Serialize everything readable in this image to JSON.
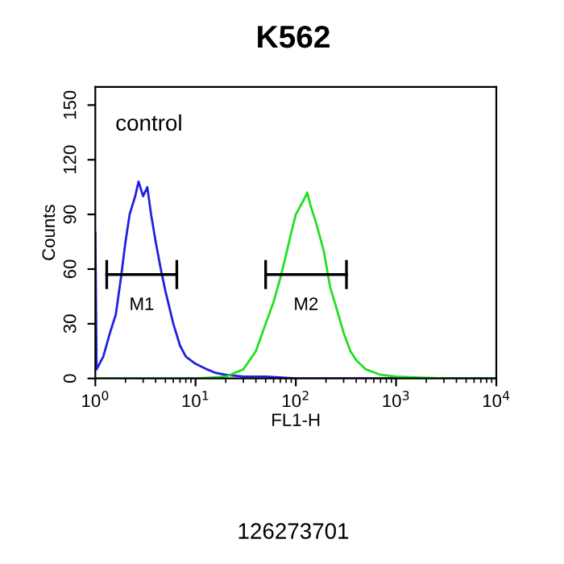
{
  "chart_data": {
    "type": "line",
    "title": "K562",
    "xlabel": "FL1-H",
    "ylabel": "Counts",
    "log": "x",
    "xlim": [
      1,
      10000
    ],
    "xticks": [
      {
        "value": 1,
        "label": "10$^{0}$"
      },
      {
        "value": 10,
        "label": "10$^{1}$"
      },
      {
        "value": 100,
        "label": "10$^{2}$"
      },
      {
        "value": 1000,
        "label": "10$^{3}$"
      },
      {
        "value": 10000,
        "label": "10$^{4}$"
      }
    ],
    "ylim": [
      0,
      160
    ],
    "yticks": [
      0,
      30,
      60,
      90,
      120,
      150
    ],
    "grid": false,
    "legend": false,
    "marker": "none",
    "series": [
      {
        "color": "#2020e0",
        "x": [
          1.0,
          1.03,
          1.1,
          1.2,
          1.4,
          1.6,
          1.8,
          2.0,
          2.2,
          2.5,
          2.7,
          3.0,
          3.3,
          3.6,
          4.0,
          4.5,
          5.0,
          6,
          7,
          8,
          10,
          13,
          16,
          20,
          30,
          50,
          100,
          1000,
          10000
        ],
        "values": [
          80,
          5,
          8,
          12,
          25,
          35,
          55,
          75,
          90,
          100,
          108,
          100,
          105,
          90,
          75,
          60,
          48,
          30,
          18,
          12,
          8,
          5,
          3,
          2,
          1,
          1,
          0,
          0,
          0
        ]
      },
      {
        "color": "#20e020",
        "x": [
          1,
          10,
          20,
          30,
          40,
          50,
          60,
          70,
          80,
          90,
          100,
          120,
          130,
          140,
          160,
          190,
          220,
          250,
          300,
          350,
          400,
          500,
          700,
          1000,
          3000,
          10000
        ],
        "values": [
          0,
          0,
          1,
          5,
          15,
          30,
          42,
          55,
          68,
          80,
          90,
          98,
          102,
          95,
          85,
          70,
          50,
          40,
          25,
          15,
          10,
          5,
          2,
          1,
          0,
          0
        ]
      },
      {
        "color": "#000000",
        "x": [
          1.3,
          6.5
        ],
        "values": [
          57,
          57
        ],
        "errors": [
          8,
          8
        ]
      },
      {
        "color": "#000000",
        "x": [
          50,
          320
        ],
        "values": [
          57,
          57
        ],
        "errors": [
          8,
          8
        ]
      }
    ],
    "annotations": [
      "control",
      "M1",
      "M2",
      "126273701"
    ]
  }
}
